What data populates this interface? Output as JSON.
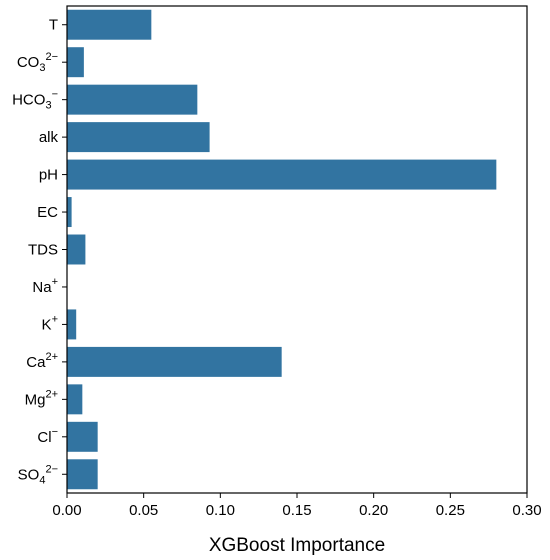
{
  "chart_data": {
    "type": "bar",
    "orientation": "horizontal",
    "title": "",
    "xlabel": "XGBoost Importance",
    "ylabel": "",
    "xlim": [
      0,
      0.3
    ],
    "xticks": [
      0.0,
      0.05,
      0.1,
      0.15,
      0.2,
      0.25,
      0.3
    ],
    "xtick_labels": [
      "0.00",
      "0.05",
      "0.10",
      "0.15",
      "0.20",
      "0.25",
      "0.30"
    ],
    "grid": false,
    "bar_color": "#3274a1",
    "categories": [
      {
        "base": "T",
        "sub": "",
        "sup": ""
      },
      {
        "base": "CO",
        "sub": "3",
        "sup": "2−"
      },
      {
        "base": "HCO",
        "sub": "3",
        "sup": "−"
      },
      {
        "base": "alk",
        "sub": "",
        "sup": ""
      },
      {
        "base": "pH",
        "sub": "",
        "sup": ""
      },
      {
        "base": "EC",
        "sub": "",
        "sup": ""
      },
      {
        "base": "TDS",
        "sub": "",
        "sup": ""
      },
      {
        "base": "Na",
        "sub": "",
        "sup": "+"
      },
      {
        "base": "K",
        "sub": "",
        "sup": "+"
      },
      {
        "base": "Ca",
        "sub": "",
        "sup": "2+"
      },
      {
        "base": "Mg",
        "sub": "",
        "sup": "2+"
      },
      {
        "base": "Cl",
        "sub": "",
        "sup": "−"
      },
      {
        "base": "SO",
        "sub": "4",
        "sup": "2−"
      }
    ],
    "values": [
      0.055,
      0.011,
      0.085,
      0.093,
      0.28,
      0.003,
      0.012,
      0.0,
      0.006,
      0.14,
      0.01,
      0.02,
      0.02
    ]
  }
}
